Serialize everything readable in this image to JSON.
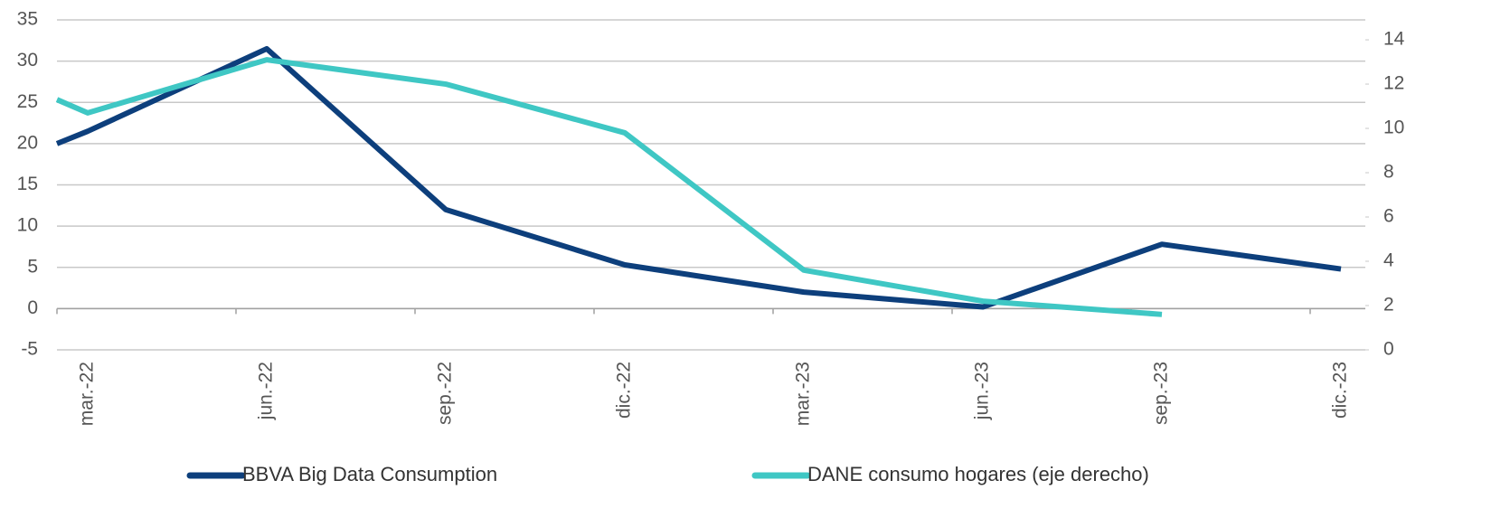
{
  "chart_data": {
    "type": "line",
    "categories": [
      null,
      "mar.-22",
      "jun.-22",
      "sep.-22",
      "dic.-22",
      "mar.-23",
      "jun.-23",
      "sep.-23",
      "dic.-23"
    ],
    "series": [
      {
        "name": "BBVA Big Data Consumption",
        "color": "#0d3f7c",
        "values": [
          20,
          21.5,
          31.5,
          12,
          5.3,
          2,
          0.2,
          7.8,
          4.8
        ]
      },
      {
        "name": "DANE consumo hogares (eje derecho)",
        "color": "#3fc7c4",
        "axis": "y2",
        "values": [
          11.3,
          10.7,
          13.1,
          12.0,
          9.8,
          3.6,
          2.2,
          1.6,
          null
        ]
      }
    ],
    "ylim": [
      -5,
      35
    ],
    "yticks": [
      -5,
      0,
      5,
      10,
      15,
      20,
      25,
      30,
      35
    ],
    "y2lim": [
      0,
      14.9
    ],
    "y2ticks": [
      0,
      2,
      4,
      6,
      8,
      10,
      12,
      14
    ],
    "grid": true
  }
}
